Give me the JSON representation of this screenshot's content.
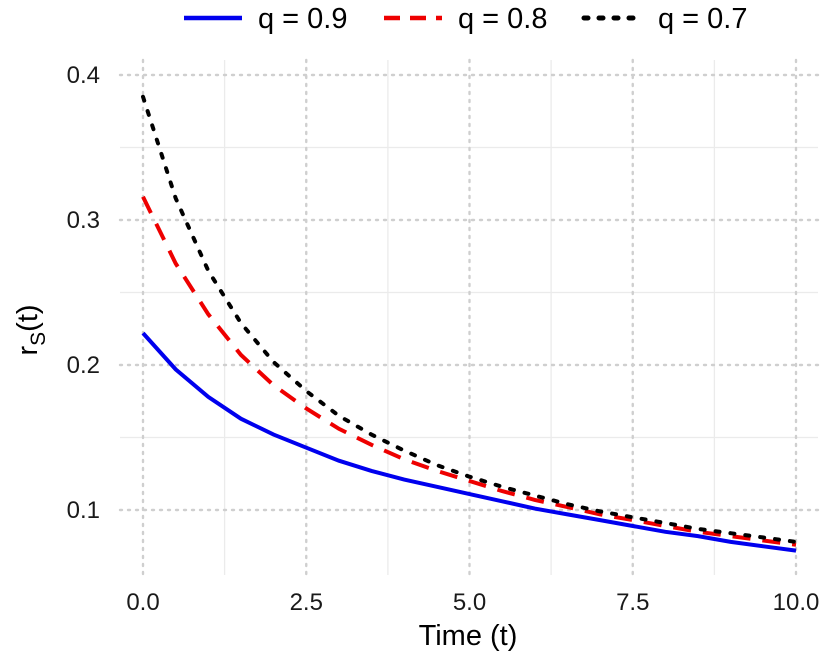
{
  "chart_data": {
    "type": "line",
    "title": "",
    "xlabel": "Time (t)",
    "ylabel": {
      "base": "r",
      "subscript": "S",
      "suffix": "(t)"
    },
    "xlim": [
      0,
      10
    ],
    "ylim": [
      0.058,
      0.41
    ],
    "x_ticks": [
      0,
      2.5,
      5,
      7.5,
      10
    ],
    "x_tick_labels": [
      "0.0",
      "2.5",
      "5.0",
      "7.5",
      "10.0"
    ],
    "y_ticks": [
      0.1,
      0.2,
      0.3,
      0.4
    ],
    "y_tick_labels": [
      "0.1",
      "0.2",
      "0.3",
      "0.4"
    ],
    "x_minor_ticks": [
      1.25,
      3.75,
      6.25,
      8.75
    ],
    "y_minor_ticks": [
      0.15,
      0.25,
      0.35
    ],
    "grid": true,
    "legend_position": "top",
    "x": [
      0,
      0.5,
      1,
      1.5,
      2,
      2.5,
      3,
      3.5,
      4,
      4.5,
      5,
      5.5,
      6,
      6.5,
      7,
      7.5,
      8,
      8.5,
      9,
      9.5,
      10
    ],
    "series": [
      {
        "name": "q = 0.9",
        "color": "#0000ee",
        "dash": "solid",
        "values": [
          0.222,
          0.197,
          0.178,
          0.163,
          0.152,
          0.143,
          0.134,
          0.127,
          0.121,
          0.116,
          0.111,
          0.106,
          0.101,
          0.097,
          0.093,
          0.089,
          0.085,
          0.082,
          0.078,
          0.075,
          0.072
        ]
      },
      {
        "name": "q = 0.8",
        "color": "#ee0000",
        "dash": "dashed",
        "values": [
          0.316,
          0.27,
          0.235,
          0.207,
          0.186,
          0.17,
          0.156,
          0.145,
          0.135,
          0.127,
          0.12,
          0.113,
          0.107,
          0.102,
          0.097,
          0.093,
          0.089,
          0.085,
          0.082,
          0.079,
          0.076
        ]
      },
      {
        "name": "q = 0.7",
        "color": "#000000",
        "dash": "dotted",
        "values": [
          0.385,
          0.315,
          0.265,
          0.229,
          0.202,
          0.182,
          0.165,
          0.152,
          0.141,
          0.131,
          0.123,
          0.116,
          0.11,
          0.104,
          0.099,
          0.095,
          0.091,
          0.087,
          0.084,
          0.081,
          0.078
        ]
      }
    ]
  }
}
